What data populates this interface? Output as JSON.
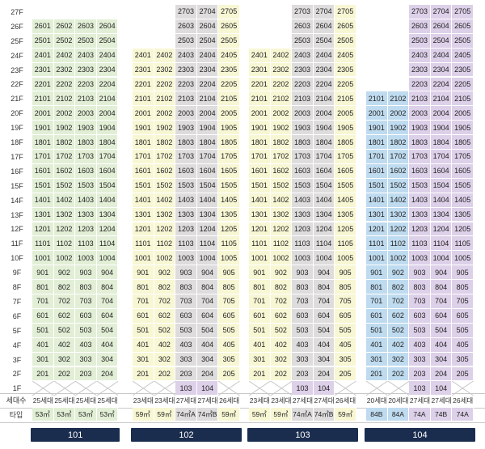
{
  "labels": {
    "households_row": "세대수",
    "type_row": "타입"
  },
  "floors": [
    "27F",
    "26F",
    "25F",
    "24F",
    "23F",
    "22F",
    "21F",
    "20F",
    "19F",
    "18F",
    "17F",
    "16F",
    "15F",
    "14F",
    "13F",
    "12F",
    "11F",
    "10F",
    "9F",
    "8F",
    "7F",
    "6F",
    "5F",
    "4F",
    "3F",
    "2F",
    "1F"
  ],
  "colors": {
    "green": "#e2efd6",
    "yellow": "#f8f7d4",
    "gray": "#dedcdc",
    "purple": "#ddd0e9",
    "blue": "#bfdbef",
    "navy": "#1b2d4f"
  },
  "buildings": [
    {
      "name": "101",
      "top_floor": 26,
      "first_floor": 2,
      "columns": [
        {
          "line": "01",
          "households": "25세대",
          "type": "53㎡",
          "color": "green"
        },
        {
          "line": "02",
          "households": "25세대",
          "type": "53㎡",
          "color": "green"
        },
        {
          "line": "03",
          "households": "25세대",
          "type": "53㎡",
          "color": "green"
        },
        {
          "line": "04",
          "households": "25세대",
          "type": "53㎡",
          "color": "green"
        }
      ],
      "ground_units": [],
      "special": []
    },
    {
      "name": "102",
      "top_floor": 27,
      "first_floor": 2,
      "columns": [
        {
          "line": "01",
          "top": 24,
          "households": "23세대",
          "type": "59㎡",
          "color": "yellow"
        },
        {
          "line": "02",
          "top": 24,
          "households": "23세대",
          "type": "59㎡",
          "color": "yellow"
        },
        {
          "line": "03",
          "top": 27,
          "households": "27세대",
          "type": "74㎡A",
          "color": "gray"
        },
        {
          "line": "04",
          "top": 27,
          "households": "27세대",
          "type": "74㎡B",
          "color": "gray"
        },
        {
          "line": "05",
          "top": 27,
          "households": "26세대",
          "type": "59㎡",
          "color": "yellow"
        }
      ],
      "ground_units": [
        {
          "col": 2,
          "label": "103"
        },
        {
          "col": 3,
          "label": "104"
        }
      ],
      "special": []
    },
    {
      "name": "103",
      "top_floor": 27,
      "first_floor": 2,
      "columns": [
        {
          "line": "01",
          "top": 24,
          "households": "23세대",
          "type": "59㎡",
          "color": "yellow"
        },
        {
          "line": "02",
          "top": 24,
          "households": "23세대",
          "type": "59㎡",
          "color": "yellow"
        },
        {
          "line": "03",
          "top": 27,
          "households": "27세대",
          "type": "74㎡A",
          "color": "gray"
        },
        {
          "line": "04",
          "top": 27,
          "households": "27세대",
          "type": "74㎡B",
          "color": "gray"
        },
        {
          "line": "05",
          "top": 27,
          "households": "26세대",
          "type": "59㎡",
          "color": "yellow"
        }
      ],
      "ground_units": [
        {
          "col": 2,
          "label": "103"
        },
        {
          "col": 3,
          "label": "104"
        }
      ],
      "special": []
    },
    {
      "name": "104",
      "top_floor": 27,
      "first_floor": 2,
      "columns": [
        {
          "line": "01",
          "top": 21,
          "households": "20세대",
          "type": "84B",
          "color": "blue"
        },
        {
          "line": "02",
          "top": 21,
          "households": "20세대",
          "type": "84A",
          "color": "blue"
        },
        {
          "line": "03",
          "top": 27,
          "households": "27세대",
          "type": "74A",
          "color": "purple"
        },
        {
          "line": "04",
          "top": 27,
          "households": "27세대",
          "type": "74B",
          "color": "purple"
        },
        {
          "line": "05",
          "top": 27,
          "households": "26세대",
          "type": "74A",
          "color": "purple"
        }
      ],
      "ground_units": [
        {
          "col": 2,
          "label": "103"
        },
        {
          "col": 3,
          "label": "104"
        }
      ],
      "special": [
        {
          "floor": 18,
          "col": 0,
          "color": "blue"
        },
        {
          "floor": 18,
          "col": 1,
          "color": "blue"
        },
        {
          "floor": 2,
          "col": 0,
          "color": "blue"
        },
        {
          "floor": 2,
          "col": 1,
          "color": "blue"
        }
      ]
    }
  ]
}
